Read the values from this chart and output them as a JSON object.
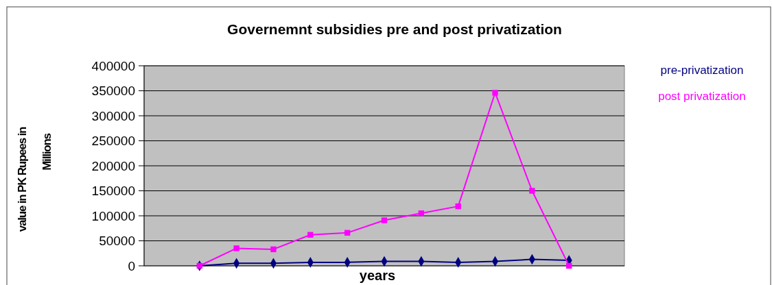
{
  "chart_data": {
    "type": "line",
    "title": "Governemnt subsidies pre and post privatization",
    "xlabel": "years",
    "ylabel": "value in PK Rupees in Millions",
    "categories": [
      null,
      null,
      null,
      null,
      null,
      null,
      null,
      null,
      null,
      null,
      null,
      null,
      null
    ],
    "series": [
      {
        "name": "pre-privatization",
        "color": "#000080",
        "marker": "diamond",
        "values": [
          null,
          0,
          5000,
          5000,
          7000,
          7000,
          9000,
          9000,
          7000,
          9000,
          13000,
          11000,
          null
        ]
      },
      {
        "name": "post privatization",
        "color": "#ff00ff",
        "marker": "square",
        "values": [
          null,
          0,
          35000,
          33000,
          62000,
          66000,
          91000,
          105000,
          119000,
          346000,
          150000,
          0,
          null
        ]
      }
    ],
    "ylim": [
      0,
      400000
    ],
    "yticks": [
      0,
      50000,
      100000,
      150000,
      200000,
      250000,
      300000,
      350000,
      400000
    ],
    "grid": "y",
    "legend": "right",
    "line_style": "solid"
  }
}
